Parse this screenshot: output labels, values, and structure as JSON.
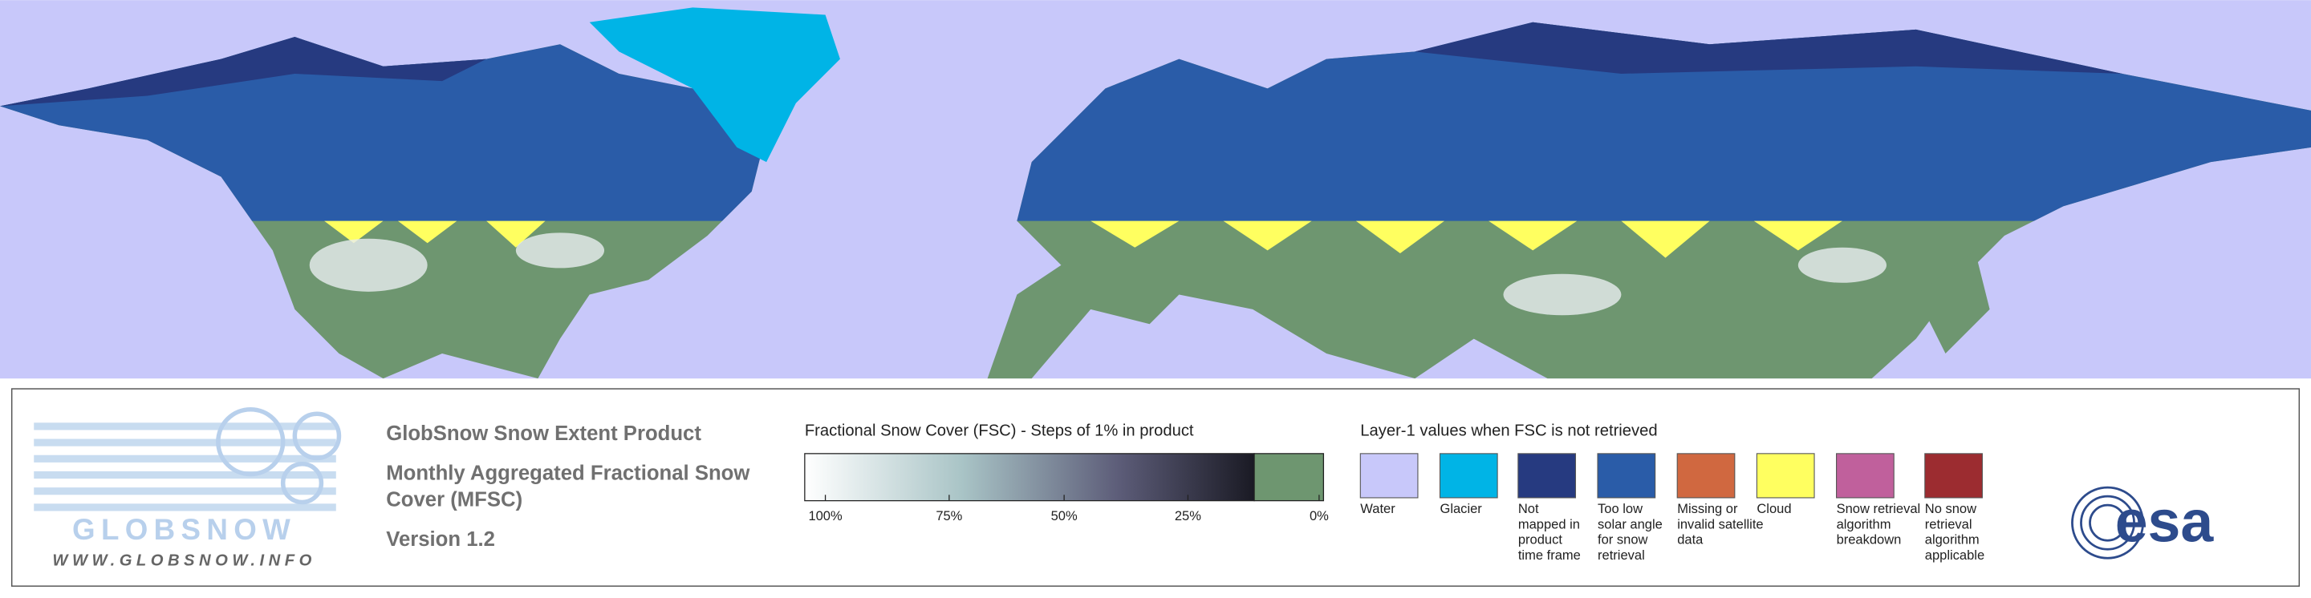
{
  "logo": {
    "name": "GLOBSNOW",
    "url": "WWW.GLOBSNOW.INFO"
  },
  "product": {
    "title": "GlobSnow Snow Extent Product",
    "subtitle_lines": [
      "Monthly Aggregated Fractional Snow",
      "Cover (MFSC)"
    ],
    "version": "Version 1.2"
  },
  "colorbar": {
    "title": "Fractional Snow Cover (FSC) - Steps of 1% in product",
    "ticks": [
      "100%",
      "75%",
      "50%",
      "25%",
      "0%"
    ]
  },
  "legend": {
    "title": "Layer-1 values when FSC is not retrieved",
    "items": [
      {
        "color": "#c8c8fa",
        "lines": [
          "Water"
        ]
      },
      {
        "color": "#00b4e6",
        "lines": [
          "Glacier"
        ]
      },
      {
        "color": "#263a80",
        "lines": [
          "Not",
          "mapped in",
          "product",
          "time frame"
        ]
      },
      {
        "color": "#2a5ca8",
        "lines": [
          "Too low",
          "solar angle",
          "for snow",
          "retrieval"
        ]
      },
      {
        "color": "#d06840",
        "lines": [
          "Missing or",
          "invalid satellite",
          "data"
        ]
      },
      {
        "color": "#ffff60",
        "lines": [
          "Cloud"
        ]
      },
      {
        "color": "#c0609c",
        "lines": [
          "Snow retrieval",
          "algorithm",
          "breakdown"
        ]
      },
      {
        "color": "#9c2c30",
        "lines": [
          "No snow",
          "retrieval",
          "algorithm",
          "applicable"
        ]
      }
    ]
  },
  "agency": "esa"
}
